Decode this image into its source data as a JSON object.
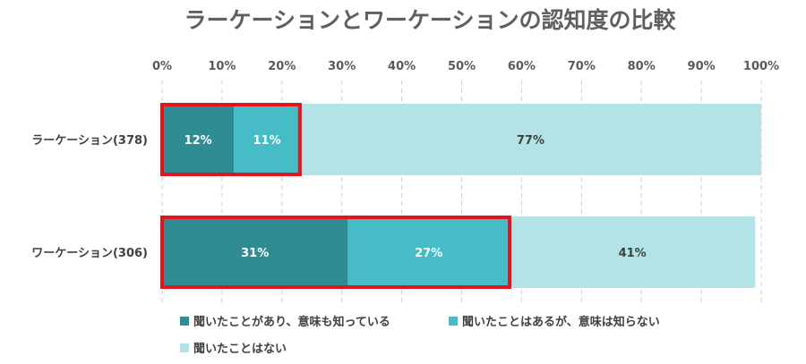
{
  "chart_data": {
    "type": "bar",
    "orientation": "horizontal",
    "stacked": true,
    "title": "ラーケーションとワーケーションの認知度の比較",
    "categories": [
      "ラーケーション(378)",
      "ワーケーション(306)"
    ],
    "series": [
      {
        "name": "聞いたことがあり、意味も知っている",
        "values": [
          12,
          31
        ],
        "color": "#2e8c92"
      },
      {
        "name": "聞いたことはあるが、意味は知らない",
        "values": [
          11,
          27
        ],
        "color": "#45bcc6"
      },
      {
        "name": "聞いたことはない",
        "values": [
          77,
          41
        ],
        "color": "#b4e3e7"
      }
    ],
    "value_suffix": "%",
    "xlim": [
      0,
      100
    ],
    "xticks": [
      "0%",
      "10%",
      "20%",
      "30%",
      "40%",
      "50%",
      "60%",
      "70%",
      "80%",
      "90%",
      "100%"
    ],
    "grid": "vertical-dashed",
    "legend_position": "bottom-left",
    "highlight": {
      "color": "#e5131b",
      "series_covered": 2
    }
  }
}
